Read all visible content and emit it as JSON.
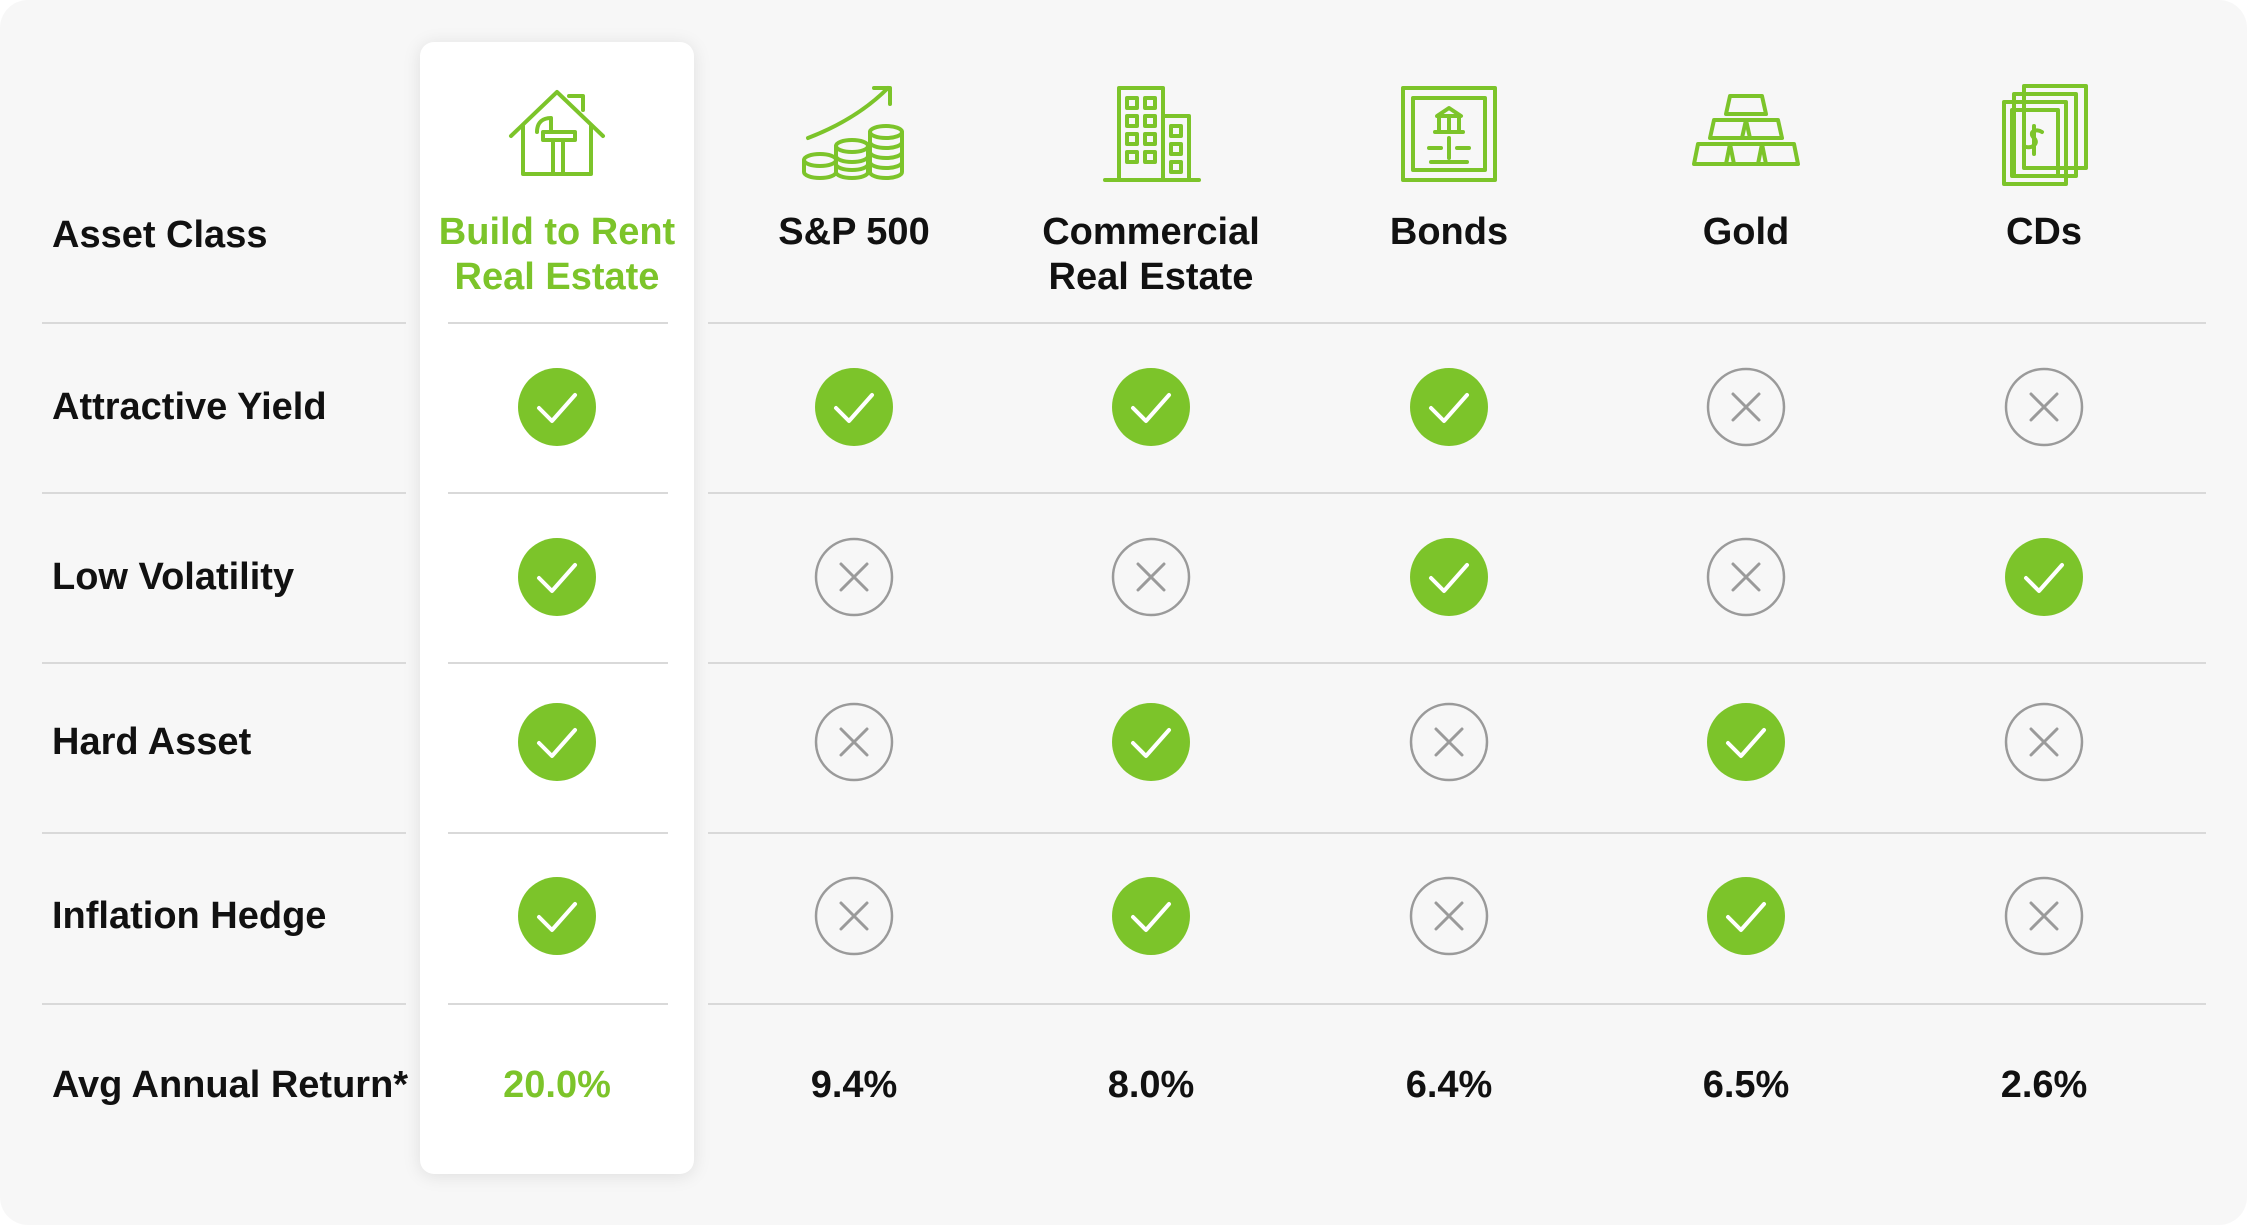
{
  "table": {
    "header_label": "Asset Class",
    "rows": [
      {
        "key": "yield",
        "label": "Attractive Yield"
      },
      {
        "key": "volatility",
        "label": "Low Volatility"
      },
      {
        "key": "hard",
        "label": "Hard Asset"
      },
      {
        "key": "inflation",
        "label": "Inflation Hedge"
      }
    ],
    "return_label": "Avg Annual Return*",
    "columns": [
      {
        "icon": "house-hammer-icon",
        "name_lines": [
          "Build to Rent",
          "Real Estate"
        ],
        "highlight": true,
        "marks": {
          "yield": "check",
          "volatility": "check",
          "hard": "check",
          "inflation": "check"
        },
        "return": "20.0%"
      },
      {
        "icon": "coin-stack-growth-icon",
        "name_lines": [
          "S&P 500"
        ],
        "highlight": false,
        "marks": {
          "yield": "check",
          "volatility": "cross",
          "hard": "cross",
          "inflation": "cross"
        },
        "return": "9.4%"
      },
      {
        "icon": "office-building-icon",
        "name_lines": [
          "Commercial",
          "Real Estate"
        ],
        "highlight": false,
        "marks": {
          "yield": "check",
          "volatility": "cross",
          "hard": "check",
          "inflation": "check"
        },
        "return": "8.0%"
      },
      {
        "icon": "bond-certificate-icon",
        "name_lines": [
          "Bonds"
        ],
        "highlight": false,
        "marks": {
          "yield": "check",
          "volatility": "check",
          "hard": "cross",
          "inflation": "cross"
        },
        "return": "6.4%"
      },
      {
        "icon": "gold-bars-icon",
        "name_lines": [
          "Gold"
        ],
        "highlight": false,
        "marks": {
          "yield": "cross",
          "volatility": "cross",
          "hard": "check",
          "inflation": "check"
        },
        "return": "6.5%"
      },
      {
        "icon": "cash-certificate-icon",
        "name_lines": [
          "CDs"
        ],
        "highlight": false,
        "marks": {
          "yield": "cross",
          "volatility": "check",
          "hard": "cross",
          "inflation": "cross"
        },
        "return": "2.6%"
      }
    ]
  },
  "colors": {
    "accent": "#7cc42a",
    "cross": "#9a9a9a",
    "text": "#111111",
    "divider": "#d9d9d9"
  }
}
